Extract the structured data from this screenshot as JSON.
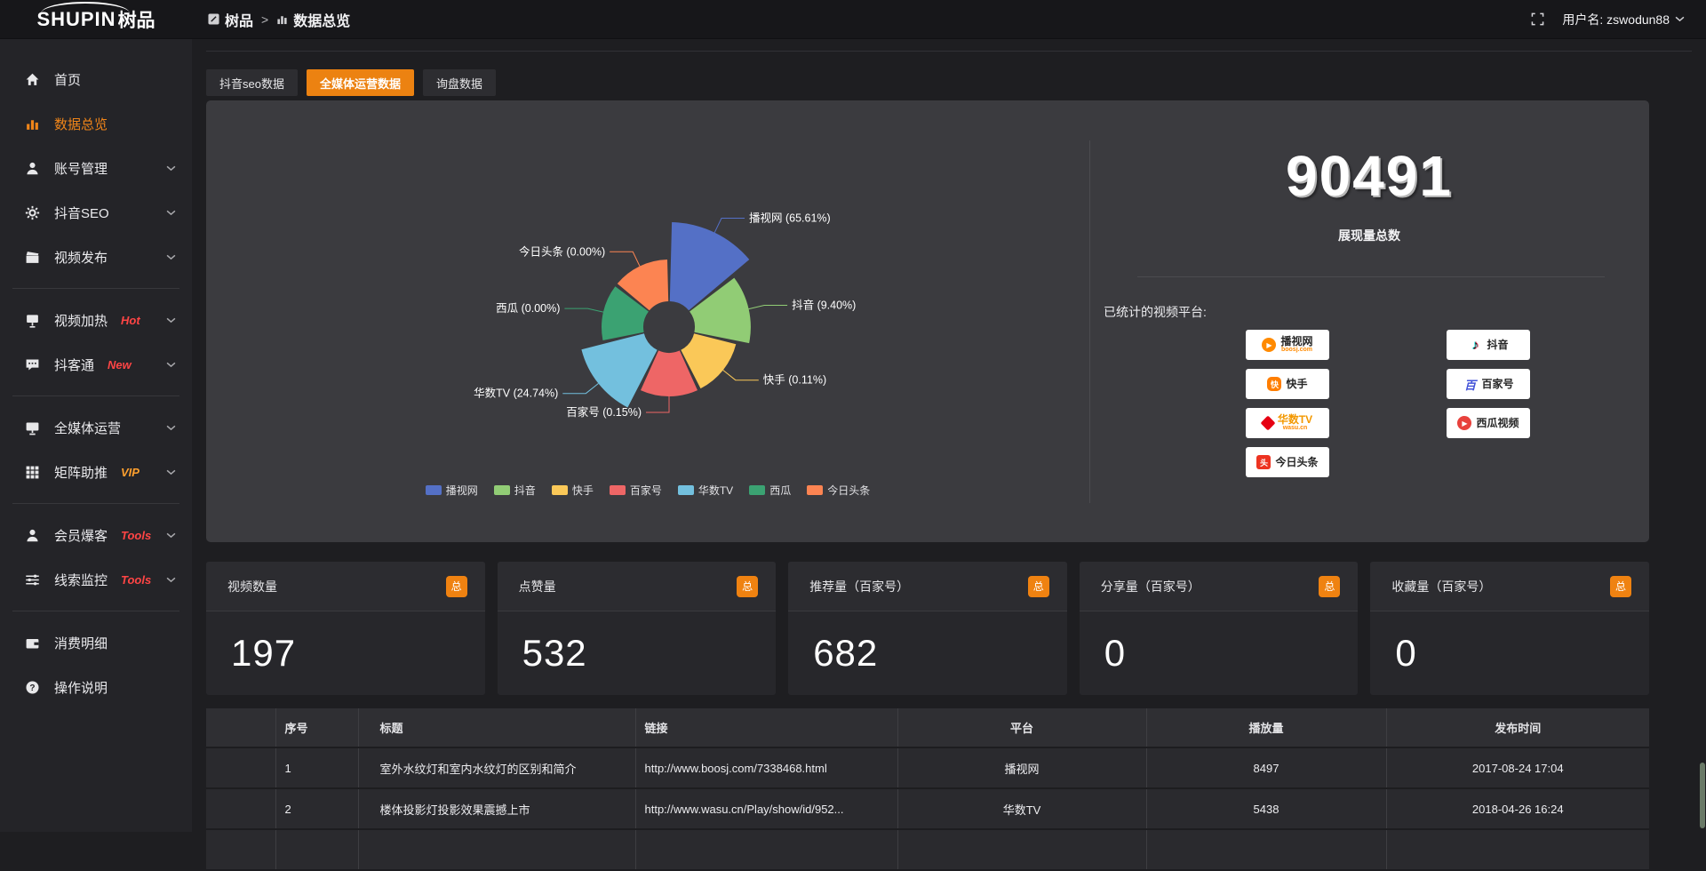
{
  "colors": {
    "accent": "#ec8211",
    "link": "#f5882e",
    "badge_hot": "#ff4545",
    "badge_vip": "#ffa02e",
    "total_badge": "#ef8211"
  },
  "app": {
    "logo_latin": "SHUPIN",
    "logo_cn": "树品"
  },
  "topbar": {
    "breadcrumb": [
      {
        "icon": "app-icon",
        "label": "树品"
      },
      {
        "icon": "bars-icon",
        "label": "数据总览"
      }
    ],
    "separator": ">",
    "user_label": "用户名: zswodun88"
  },
  "sidebar": {
    "items": [
      {
        "icon": "home",
        "label": "首页"
      },
      {
        "icon": "chart",
        "label": "数据总览",
        "active": true
      },
      {
        "icon": "user",
        "label": "账号管理",
        "chevron": true
      },
      {
        "icon": "gear",
        "label": "抖音SEO",
        "chevron": true
      },
      {
        "icon": "clapper",
        "label": "视频发布",
        "chevron": true,
        "divider_after": true
      },
      {
        "icon": "heat",
        "label": "视频加热",
        "badge": "Hot",
        "badge_color": "#ff4545",
        "chevron": true
      },
      {
        "icon": "chat",
        "label": "抖客通",
        "badge": "New",
        "badge_color": "#ff4545",
        "chevron": true,
        "divider_after": true
      },
      {
        "icon": "monitor",
        "label": "全媒体运营",
        "chevron": true
      },
      {
        "icon": "grid",
        "label": "矩阵助推",
        "badge": "VIP",
        "badge_color": "#ffa02e",
        "chevron": true,
        "divider_after": true
      },
      {
        "icon": "member",
        "label": "会员爆客",
        "badge": "Tools",
        "badge_color": "#ff4545",
        "chevron": true
      },
      {
        "icon": "sliders",
        "label": "线索监控",
        "badge": "Tools",
        "badge_color": "#ff4545",
        "chevron": true,
        "divider_after": true
      },
      {
        "icon": "wallet",
        "label": "消费明细"
      },
      {
        "icon": "help",
        "label": "操作说明"
      }
    ]
  },
  "tabs": {
    "items": [
      "抖音seo数据",
      "全媒体运营数据",
      "询盘数据"
    ],
    "active_index": 1
  },
  "chart_data": {
    "type": "pie",
    "variant": "nightingale-rose",
    "labels": [
      "播视网",
      "抖音",
      "快手",
      "百家号",
      "华数TV",
      "西瓜",
      "今日头条"
    ],
    "values": [
      65.61,
      9.4,
      0.11,
      0.15,
      24.74,
      0.0,
      0.0
    ],
    "unit": "%",
    "colors": [
      "#5470c6",
      "#91cc75",
      "#fac858",
      "#ee6666",
      "#73c0de",
      "#3ba272",
      "#fc8452"
    ],
    "label_format": "{name} ({value}%)",
    "legend": [
      "播视网",
      "抖音",
      "快手",
      "百家号",
      "华数TV",
      "西瓜",
      "今日头条"
    ],
    "legend_position": "bottom",
    "title": ""
  },
  "summary": {
    "total_value": "90491",
    "total_label": "展现量总数",
    "platforms_title": "已统计的视频平台:",
    "platform_columns": [
      [
        {
          "icon": "boosj",
          "name": "播视网",
          "sub": "boosj.com"
        },
        {
          "icon": "kuaishou",
          "name": "快手"
        },
        {
          "icon": "wasu",
          "name": "华数TV",
          "sub": "wasu.cn",
          "name_color": "#f39800"
        },
        {
          "icon": "toutiao",
          "name": "今日头条"
        }
      ],
      [
        {
          "icon": "douyin",
          "name": "抖音"
        },
        {
          "icon": "baijiahao",
          "name": "百家号"
        },
        {
          "icon": "xigua",
          "name": "西瓜视频"
        }
      ]
    ]
  },
  "stat_cards": [
    {
      "title": "视频数量",
      "badge": "总",
      "value": "197"
    },
    {
      "title": "点赞量",
      "badge": "总",
      "value": "532"
    },
    {
      "title": "推荐量（百家号）",
      "badge": "总",
      "value": "682"
    },
    {
      "title": "分享量（百家号）",
      "badge": "总",
      "value": "0"
    },
    {
      "title": "收藏量（百家号）",
      "badge": "总",
      "value": "0"
    }
  ],
  "table": {
    "headers": [
      "序号",
      "标题",
      "链接",
      "平台",
      "播放量",
      "发布时间"
    ],
    "rows": [
      {
        "seq": "1",
        "title": "室外水纹灯和室内水纹灯的区别和简介",
        "link": "http://www.boosj.com/7338468.html",
        "platform": "播视网",
        "plays": "8497",
        "time": "2017-08-24 17:04"
      },
      {
        "seq": "2",
        "title": "楼体投影灯投影效果震撼上市",
        "link": "http://www.wasu.cn/Play/show/id/952...",
        "platform": "华数TV",
        "plays": "5438",
        "time": "2018-04-26 16:24"
      },
      {
        "seq": "",
        "title": "",
        "link": "",
        "platform": "",
        "plays": "",
        "time": ""
      }
    ]
  }
}
